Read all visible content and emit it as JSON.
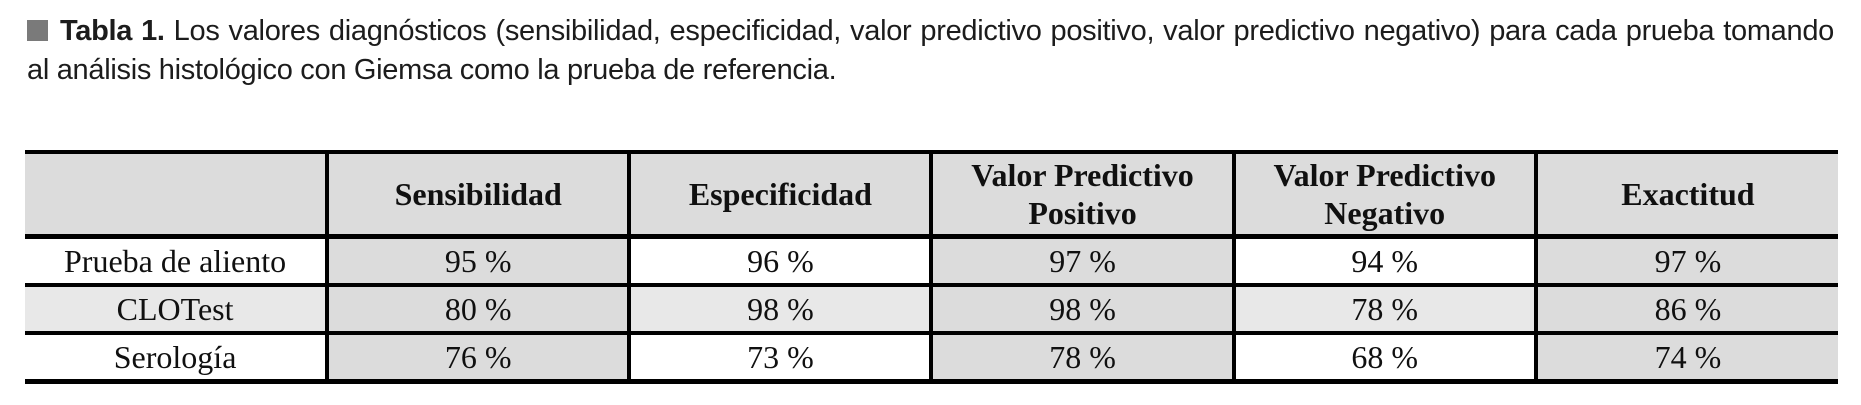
{
  "caption": {
    "bullet_icon": "square-bullet",
    "label": "Tabla 1.",
    "text": "Los valores diagnósticos (sensibilidad, especificidad, valor predictivo positivo, valor predictivo negativo) para cada prueba tomando al análisis histológico con Giemsa como la prueba de referencia."
  },
  "table": {
    "headers": [
      "",
      "Sensibilidad",
      "Especificidad",
      "Valor Predictivo Positivo",
      "Valor Predictivo Negativo",
      "Exactitud"
    ],
    "rows": [
      {
        "label": "Prueba de aliento",
        "values": [
          "95 %",
          "96 %",
          "97 %",
          "94 %",
          "97 %"
        ]
      },
      {
        "label": "CLOTest",
        "values": [
          "80 %",
          "98 %",
          "98 %",
          "78 %",
          "86 %"
        ]
      },
      {
        "label": "Serología",
        "values": [
          "76 %",
          "73 %",
          "78 %",
          "68 %",
          "74 %"
        ]
      }
    ]
  },
  "chart_data": {
    "type": "table",
    "title": "Tabla 1",
    "columns": [
      "",
      "Sensibilidad",
      "Especificidad",
      "Valor Predictivo Positivo",
      "Valor Predictivo Negativo",
      "Exactitud"
    ],
    "rows": [
      [
        "Prueba de aliento",
        "95 %",
        "96 %",
        "97 %",
        "94 %",
        "97 %"
      ],
      [
        "CLOTest",
        "80 %",
        "98 %",
        "98 %",
        "78 %",
        "86 %"
      ],
      [
        "Serología",
        "76 %",
        "73 %",
        "78 %",
        "68 %",
        "74 %"
      ]
    ]
  },
  "colors": {
    "header_bg": "#dcdcdc",
    "cell_gray": "#dcdcdc",
    "cell_light_gray": "#e8e8e8",
    "cell_white": "#ffffff",
    "border": "#000000",
    "bullet": "#7a7a7a"
  }
}
